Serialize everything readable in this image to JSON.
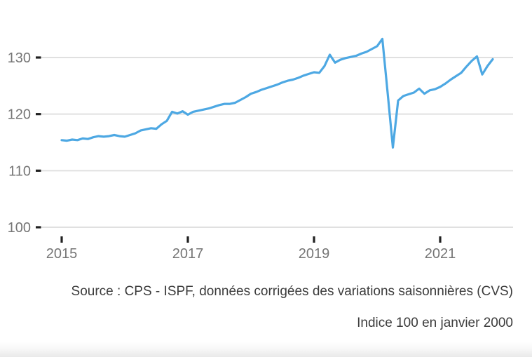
{
  "chart_data": {
    "type": "line",
    "title": "",
    "frequency": "monthly",
    "x_range": [
      "2015-01",
      "2021-11"
    ],
    "values": [
      115.4,
      115.3,
      115.5,
      115.4,
      115.7,
      115.6,
      115.9,
      116.1,
      116.0,
      116.1,
      116.3,
      116.1,
      116.0,
      116.3,
      116.6,
      117.1,
      117.3,
      117.5,
      117.4,
      118.2,
      118.8,
      120.4,
      120.1,
      120.5,
      119.9,
      120.4,
      120.6,
      120.8,
      121.0,
      121.3,
      121.6,
      121.8,
      121.8,
      122.0,
      122.5,
      123.0,
      123.6,
      123.9,
      124.3,
      124.6,
      124.9,
      125.2,
      125.6,
      125.9,
      126.1,
      126.4,
      126.8,
      127.1,
      127.4,
      127.3,
      128.5,
      130.5,
      129.1,
      129.6,
      129.9,
      130.1,
      130.3,
      130.7,
      131.0,
      131.5,
      132.0,
      133.3,
      123.8,
      114.1,
      122.4,
      123.2,
      123.5,
      123.8,
      124.5,
      123.6,
      124.2,
      124.4,
      124.8,
      125.4,
      126.1,
      126.7,
      127.3,
      128.4,
      129.4,
      130.2,
      127.0,
      128.5,
      129.7
    ],
    "x_ticks": [
      2015,
      2017,
      2019,
      2021
    ],
    "y_ticks": [
      100,
      110,
      120,
      130
    ],
    "ylim": [
      100,
      134
    ],
    "grid": "horizontal",
    "legend": "none",
    "colors": {
      "line": "#4da8e3",
      "gridline": "#e0e0e0",
      "tick": "#212121",
      "axis_label": "#757575",
      "caption": "#3c3c3c"
    },
    "captions": {
      "source": "Source : CPS - ISPF, données corrigées des variations saisonnières (CVS)",
      "note": "Indice 100 en janvier 2000"
    }
  }
}
